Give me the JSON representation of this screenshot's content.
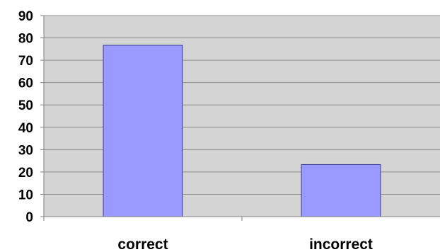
{
  "chart_data": {
    "type": "bar",
    "categories": [
      "correct",
      "incorrect"
    ],
    "values": [
      76.7,
      23.3
    ],
    "ylim": [
      0,
      90
    ],
    "yticks": [
      0,
      10,
      20,
      30,
      40,
      50,
      60,
      70,
      80,
      90
    ],
    "grid": true,
    "legend": "none",
    "colors": {
      "bar_fill": "#9999ff",
      "bar_stroke": "#3c3c8c",
      "plot_background": "#d4d4d4",
      "gridline": "#8c8c8c",
      "axis": "#808080"
    }
  }
}
